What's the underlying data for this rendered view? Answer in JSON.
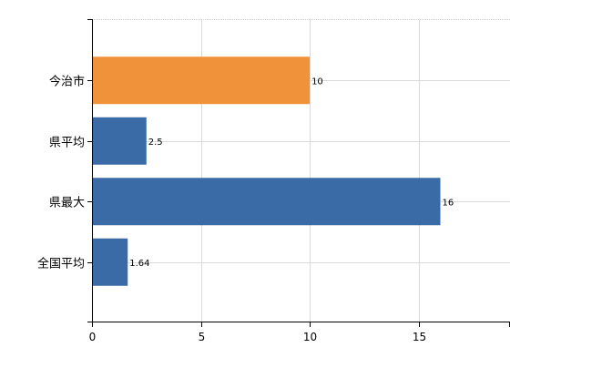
{
  "chart_data": {
    "type": "bar",
    "orientation": "horizontal",
    "categories": [
      "今治市",
      "県平均",
      "県最大",
      "全国平均"
    ],
    "values": [
      10,
      2.5,
      16,
      1.64
    ],
    "data_labels": [
      "10",
      "2.5",
      "16",
      "1.64"
    ],
    "bar_colors": [
      "#f0923a",
      "#3a6ba6",
      "#3a6ba6",
      "#3a6ba6"
    ],
    "xlim": [
      0,
      19.2
    ],
    "x_ticks": [
      0,
      5,
      10,
      15
    ],
    "x_tick_labels": [
      "0",
      "5",
      "10",
      "15"
    ],
    "grid": true,
    "legend": false,
    "title": "",
    "xlabel": "",
    "ylabel": ""
  }
}
